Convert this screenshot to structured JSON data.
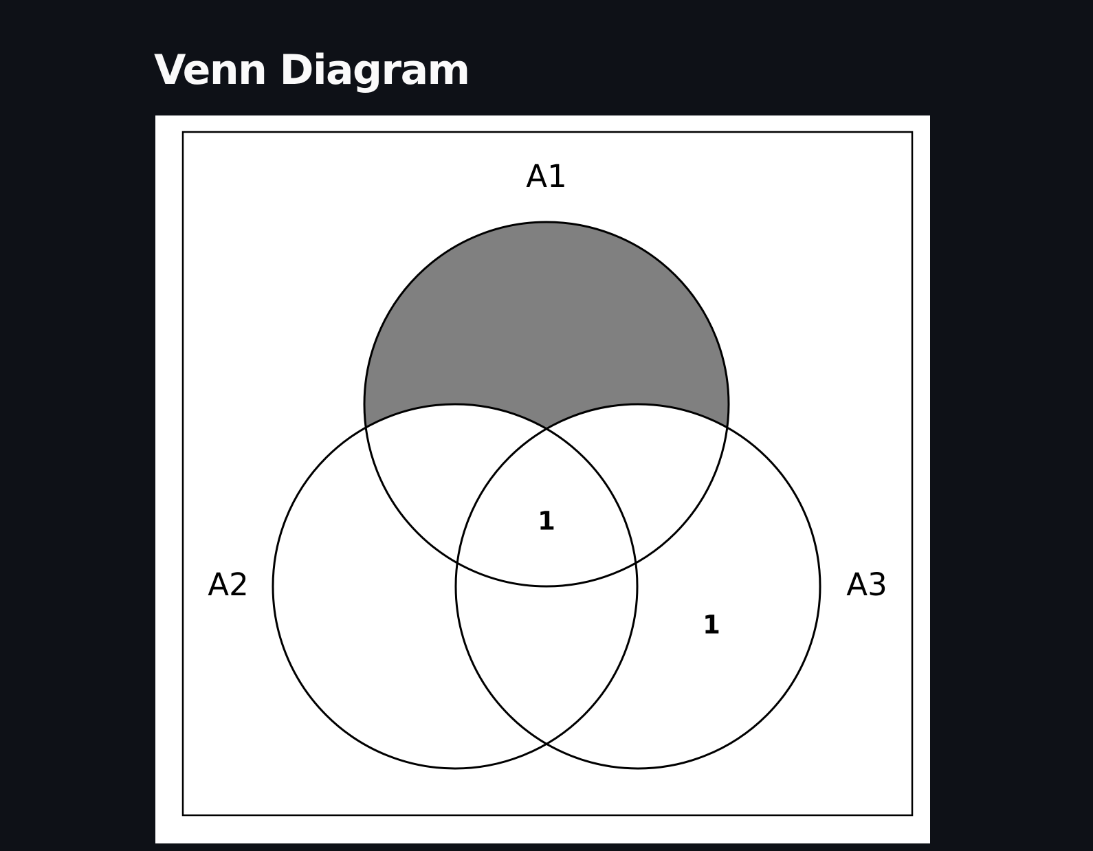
{
  "page": {
    "title": "Venn Diagram"
  },
  "colors": {
    "background": "#0e1117",
    "title_text": "#fafafa",
    "figure_background": "#ffffff",
    "shaded_region": "#808080",
    "outline": "#000000"
  },
  "diagram": {
    "type": "venn3",
    "sets": [
      "A1",
      "A2",
      "A3"
    ],
    "set_labels": {
      "a1": "A1",
      "a2": "A2",
      "a3": "A3"
    },
    "shaded_regions": [
      "A1 only"
    ],
    "region_labels": {
      "a1_a2_a3": "1",
      "a3_only": "1"
    }
  }
}
